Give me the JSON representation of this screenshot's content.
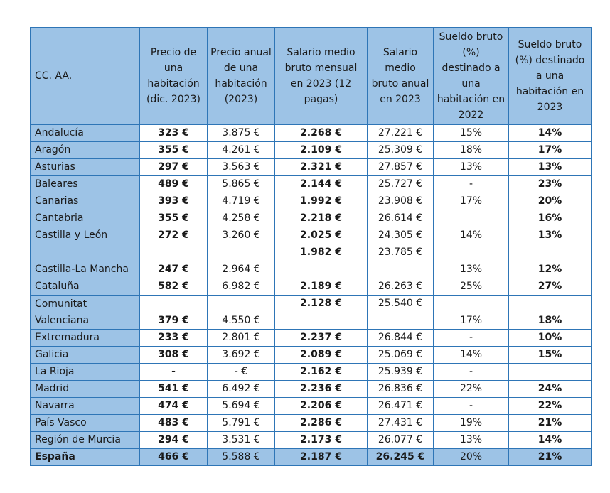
{
  "table": {
    "headers": [
      "CC. AA.",
      "Precio de una habitación (dic. 2023)",
      "Precio anual de una habitación (2023)",
      "Salario medio bruto mensual en 2023 (12 pagas)",
      "Salario medio bruto anual en 2023",
      "Sueldo bruto (%) destinado a una habitación en 2022",
      "Sueldo bruto (%) destinado a una habitación en 2023"
    ],
    "rows": [
      [
        "Andalucía",
        "323 €",
        "3.875 €",
        "2.268 €",
        "27.221 €",
        "15%",
        "14%"
      ],
      [
        "Aragón",
        "355 €",
        "4.261 €",
        "2.109 €",
        "25.309 €",
        "18%",
        "17%"
      ],
      [
        "Asturias",
        "297 €",
        "3.563 €",
        "2.321 €",
        "27.857 €",
        "13%",
        "13%"
      ],
      [
        "Baleares",
        "489 €",
        "5.865 €",
        "2.144 €",
        "25.727 €",
        "-",
        "23%"
      ],
      [
        "Canarias",
        "393 €",
        "4.719 €",
        "1.992 €",
        "23.908 €",
        "17%",
        "20%"
      ],
      [
        "Cantabria",
        "355 €",
        "4.258 €",
        "2.218 €",
        "26.614 €",
        "",
        "16%"
      ],
      [
        "Castilla y León",
        "272 €",
        "3.260 €",
        "2.025 €",
        "24.305 €",
        "14%",
        "13%"
      ],
      [
        "Castilla-La Mancha",
        "247 €",
        "2.964 €",
        "1.982 €",
        "23.785 €",
        "13%",
        "12%"
      ],
      [
        "Cataluña",
        "582 €",
        "6.982 €",
        "2.189 €",
        "26.263 €",
        "25%",
        "27%"
      ],
      [
        "Comunitat Valenciana",
        "379 €",
        "4.550 €",
        "2.128 €",
        "25.540 €",
        "17%",
        "18%"
      ],
      [
        "Extremadura",
        "233 €",
        "2.801 €",
        "2.237 €",
        "26.844 €",
        "-",
        "10%"
      ],
      [
        "Galicia",
        "308 €",
        "3.692 €",
        "2.089 €",
        "25.069 €",
        "14%",
        "15%"
      ],
      [
        "La Rioja",
        "-",
        "-  €",
        "2.162 €",
        "25.939 €",
        "-",
        ""
      ],
      [
        "Madrid",
        "541 €",
        "6.492 €",
        "2.236 €",
        "26.836 €",
        "22%",
        "24%"
      ],
      [
        "Navarra",
        "474 €",
        "5.694 €",
        "2.206 €",
        "26.471 €",
        "-",
        "22%"
      ],
      [
        "País Vasco",
        "483 €",
        "5.791 €",
        "2.286 €",
        "27.431 €",
        "19%",
        "21%"
      ],
      [
        "Región de Murcia",
        "294 €",
        "3.531 €",
        "2.173 €",
        "26.077 €",
        "13%",
        "14%"
      ]
    ],
    "total": [
      "España",
      "466 €",
      "5.588 €",
      "2.187 €",
      "26.245 €",
      "20%",
      "21%"
    ]
  }
}
